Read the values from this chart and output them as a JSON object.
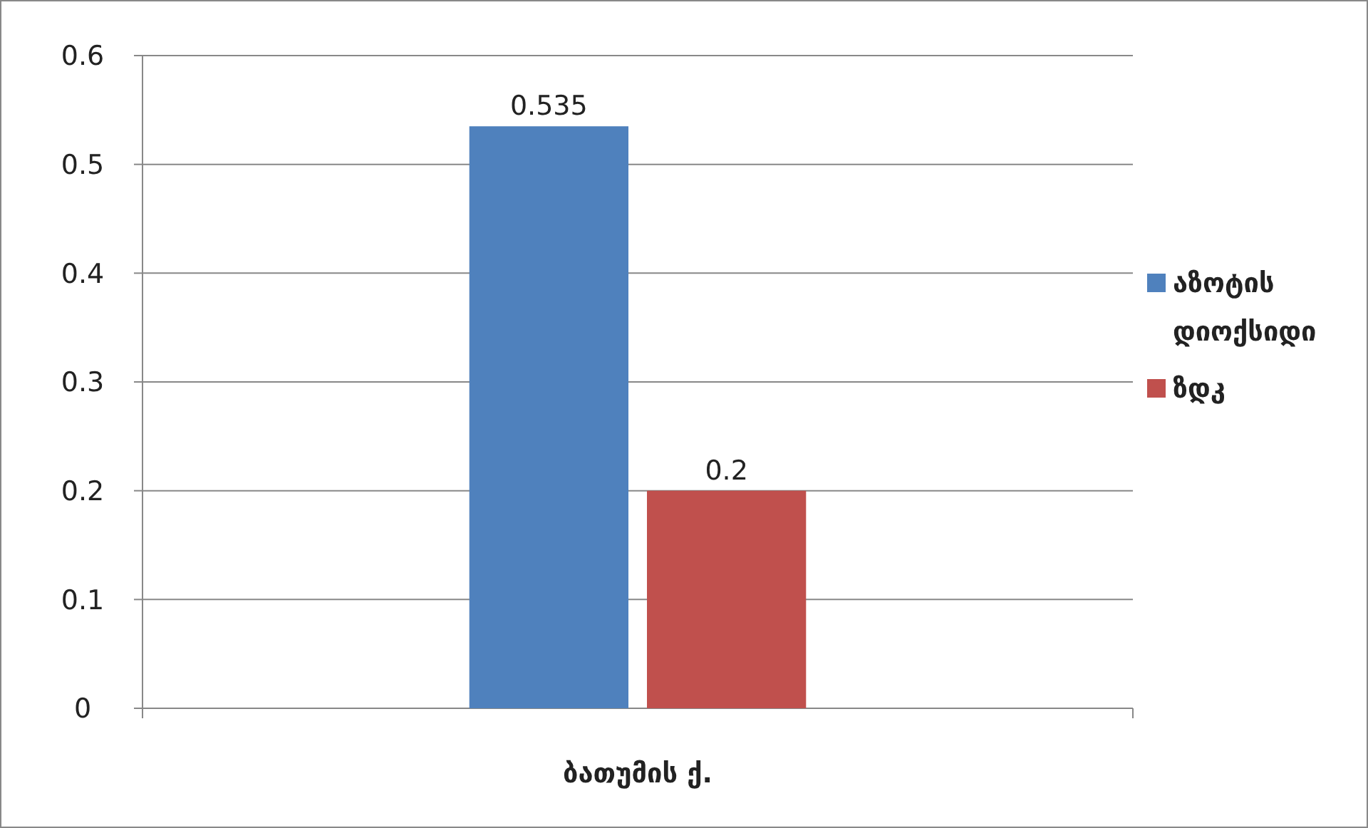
{
  "chart_data": {
    "type": "bar",
    "categories": [
      "ბათუმის ქ."
    ],
    "series": [
      {
        "name": "აზოტის დიოქსიდი",
        "color": "#4f81bd",
        "values": [
          0.535
        ]
      },
      {
        "name": "ზდკ",
        "color": "#c0504d",
        "values": [
          0.2
        ]
      }
    ],
    "ylim": [
      0,
      0.6
    ],
    "yticks": [
      0,
      0.1,
      0.2,
      0.3,
      0.4,
      0.5,
      0.6
    ],
    "grid": "y",
    "legend": "right",
    "data_labels": true
  }
}
